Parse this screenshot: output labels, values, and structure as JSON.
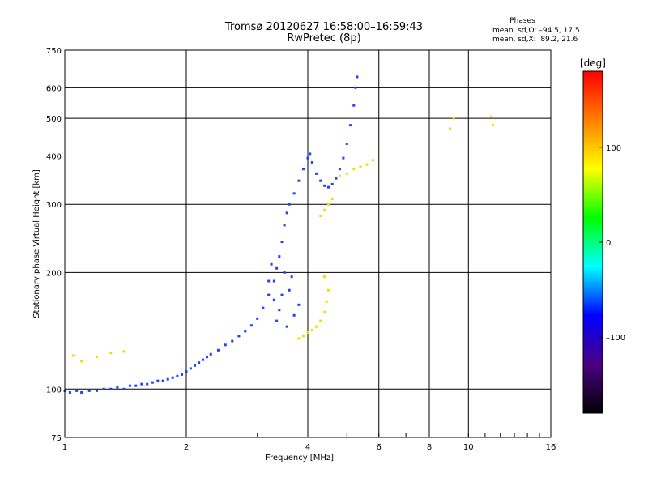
{
  "header": {
    "title_line1": "Tromsø 20120627 16:58:00–16:59:43",
    "title_line2": "RwPretec (8p)"
  },
  "phases": {
    "heading": "Phases",
    "line_o": "mean, sd,O: –94.5, 17.5",
    "line_x": "mean, sd,X:  89.2, 21.6"
  },
  "chart_data": {
    "type": "scatter",
    "title": "Tromsø 20120627 16:58:00–16:59:43 RwPretec (8p)",
    "xlabel": "Frequency [MHz]",
    "ylabel": "Stationary phase Virtual Height [km]",
    "xscale": "log",
    "yscale": "log",
    "xlim": [
      1,
      16
    ],
    "ylim": [
      75,
      750
    ],
    "xticks": [
      1,
      2,
      4,
      6,
      8,
      10,
      16
    ],
    "xtick_labels": [
      "1",
      "2",
      "4",
      "6",
      "8",
      "10",
      "16"
    ],
    "yticks": [
      75,
      100,
      200,
      300,
      400,
      500,
      600,
      750
    ],
    "ytick_labels": [
      "75",
      "100",
      "200",
      "300",
      "400",
      "500",
      "600",
      "750"
    ],
    "grid": true,
    "colorbar": {
      "label": "[deg]",
      "range": [
        -180,
        180
      ],
      "ticks": [
        -100,
        0,
        100
      ],
      "tick_labels": [
        "–100",
        "0",
        "100"
      ],
      "colors": [
        "#000000",
        "#4b0082",
        "#0000ff",
        "#00ffff",
        "#00ff00",
        "#ffff00",
        "#ff8000",
        "#ff0000"
      ]
    },
    "series": [
      {
        "mode": "O",
        "color": "#2040ff",
        "points": [
          [
            1.0,
            99
          ],
          [
            1.03,
            98
          ],
          [
            1.07,
            99
          ],
          [
            1.1,
            98
          ],
          [
            1.15,
            99
          ],
          [
            1.2,
            99
          ],
          [
            1.25,
            100
          ],
          [
            1.3,
            100
          ],
          [
            1.35,
            101
          ],
          [
            1.4,
            100
          ],
          [
            1.45,
            102
          ],
          [
            1.5,
            102
          ],
          [
            1.55,
            103
          ],
          [
            1.6,
            103
          ],
          [
            1.65,
            104
          ],
          [
            1.7,
            105
          ],
          [
            1.75,
            105
          ],
          [
            1.8,
            106
          ],
          [
            1.85,
            107
          ],
          [
            1.9,
            108
          ],
          [
            1.95,
            109
          ],
          [
            2.0,
            111
          ],
          [
            2.05,
            113
          ],
          [
            2.1,
            115
          ],
          [
            2.15,
            117
          ],
          [
            2.2,
            119
          ],
          [
            2.25,
            121
          ],
          [
            2.3,
            123
          ],
          [
            2.4,
            126
          ],
          [
            2.5,
            130
          ],
          [
            2.6,
            133
          ],
          [
            2.7,
            137
          ],
          [
            2.8,
            141
          ],
          [
            2.9,
            146
          ],
          [
            3.0,
            152
          ],
          [
            3.1,
            162
          ],
          [
            3.2,
            175
          ],
          [
            3.3,
            190
          ],
          [
            3.35,
            205
          ],
          [
            3.4,
            220
          ],
          [
            3.45,
            240
          ],
          [
            3.5,
            265
          ],
          [
            3.55,
            285
          ],
          [
            3.6,
            300
          ],
          [
            3.7,
            320
          ],
          [
            3.8,
            345
          ],
          [
            3.9,
            370
          ],
          [
            4.0,
            395
          ],
          [
            4.05,
            405
          ],
          [
            4.1,
            385
          ],
          [
            4.2,
            360
          ],
          [
            4.3,
            345
          ],
          [
            4.4,
            335
          ],
          [
            4.5,
            332
          ],
          [
            4.6,
            338
          ],
          [
            4.7,
            350
          ],
          [
            4.8,
            370
          ],
          [
            4.9,
            395
          ],
          [
            5.0,
            430
          ],
          [
            5.1,
            480
          ],
          [
            5.2,
            540
          ],
          [
            5.25,
            600
          ],
          [
            5.3,
            640
          ],
          [
            3.2,
            190
          ],
          [
            3.3,
            170
          ],
          [
            3.4,
            160
          ],
          [
            3.5,
            200
          ],
          [
            3.6,
            180
          ],
          [
            3.7,
            155
          ],
          [
            3.8,
            165
          ],
          [
            3.35,
            150
          ],
          [
            3.55,
            145
          ],
          [
            3.25,
            210
          ],
          [
            3.45,
            175
          ],
          [
            3.65,
            195
          ]
        ]
      },
      {
        "mode": "X",
        "color": "#e8e000",
        "points": [
          [
            1.05,
            122
          ],
          [
            1.1,
            118
          ],
          [
            1.2,
            121
          ],
          [
            1.3,
            124
          ],
          [
            1.4,
            125
          ],
          [
            3.8,
            135
          ],
          [
            3.9,
            137
          ],
          [
            4.0,
            140
          ],
          [
            4.1,
            142
          ],
          [
            4.2,
            145
          ],
          [
            4.3,
            150
          ],
          [
            4.4,
            158
          ],
          [
            4.45,
            168
          ],
          [
            4.5,
            180
          ],
          [
            4.4,
            195
          ],
          [
            4.3,
            280
          ],
          [
            4.4,
            290
          ],
          [
            4.5,
            300
          ],
          [
            4.6,
            310
          ],
          [
            4.8,
            355
          ],
          [
            5.0,
            360
          ],
          [
            5.2,
            370
          ],
          [
            5.4,
            375
          ],
          [
            5.6,
            380
          ],
          [
            5.8,
            390
          ],
          [
            9.0,
            470
          ],
          [
            9.2,
            500
          ],
          [
            11.4,
            505
          ],
          [
            11.5,
            480
          ]
        ]
      }
    ]
  }
}
